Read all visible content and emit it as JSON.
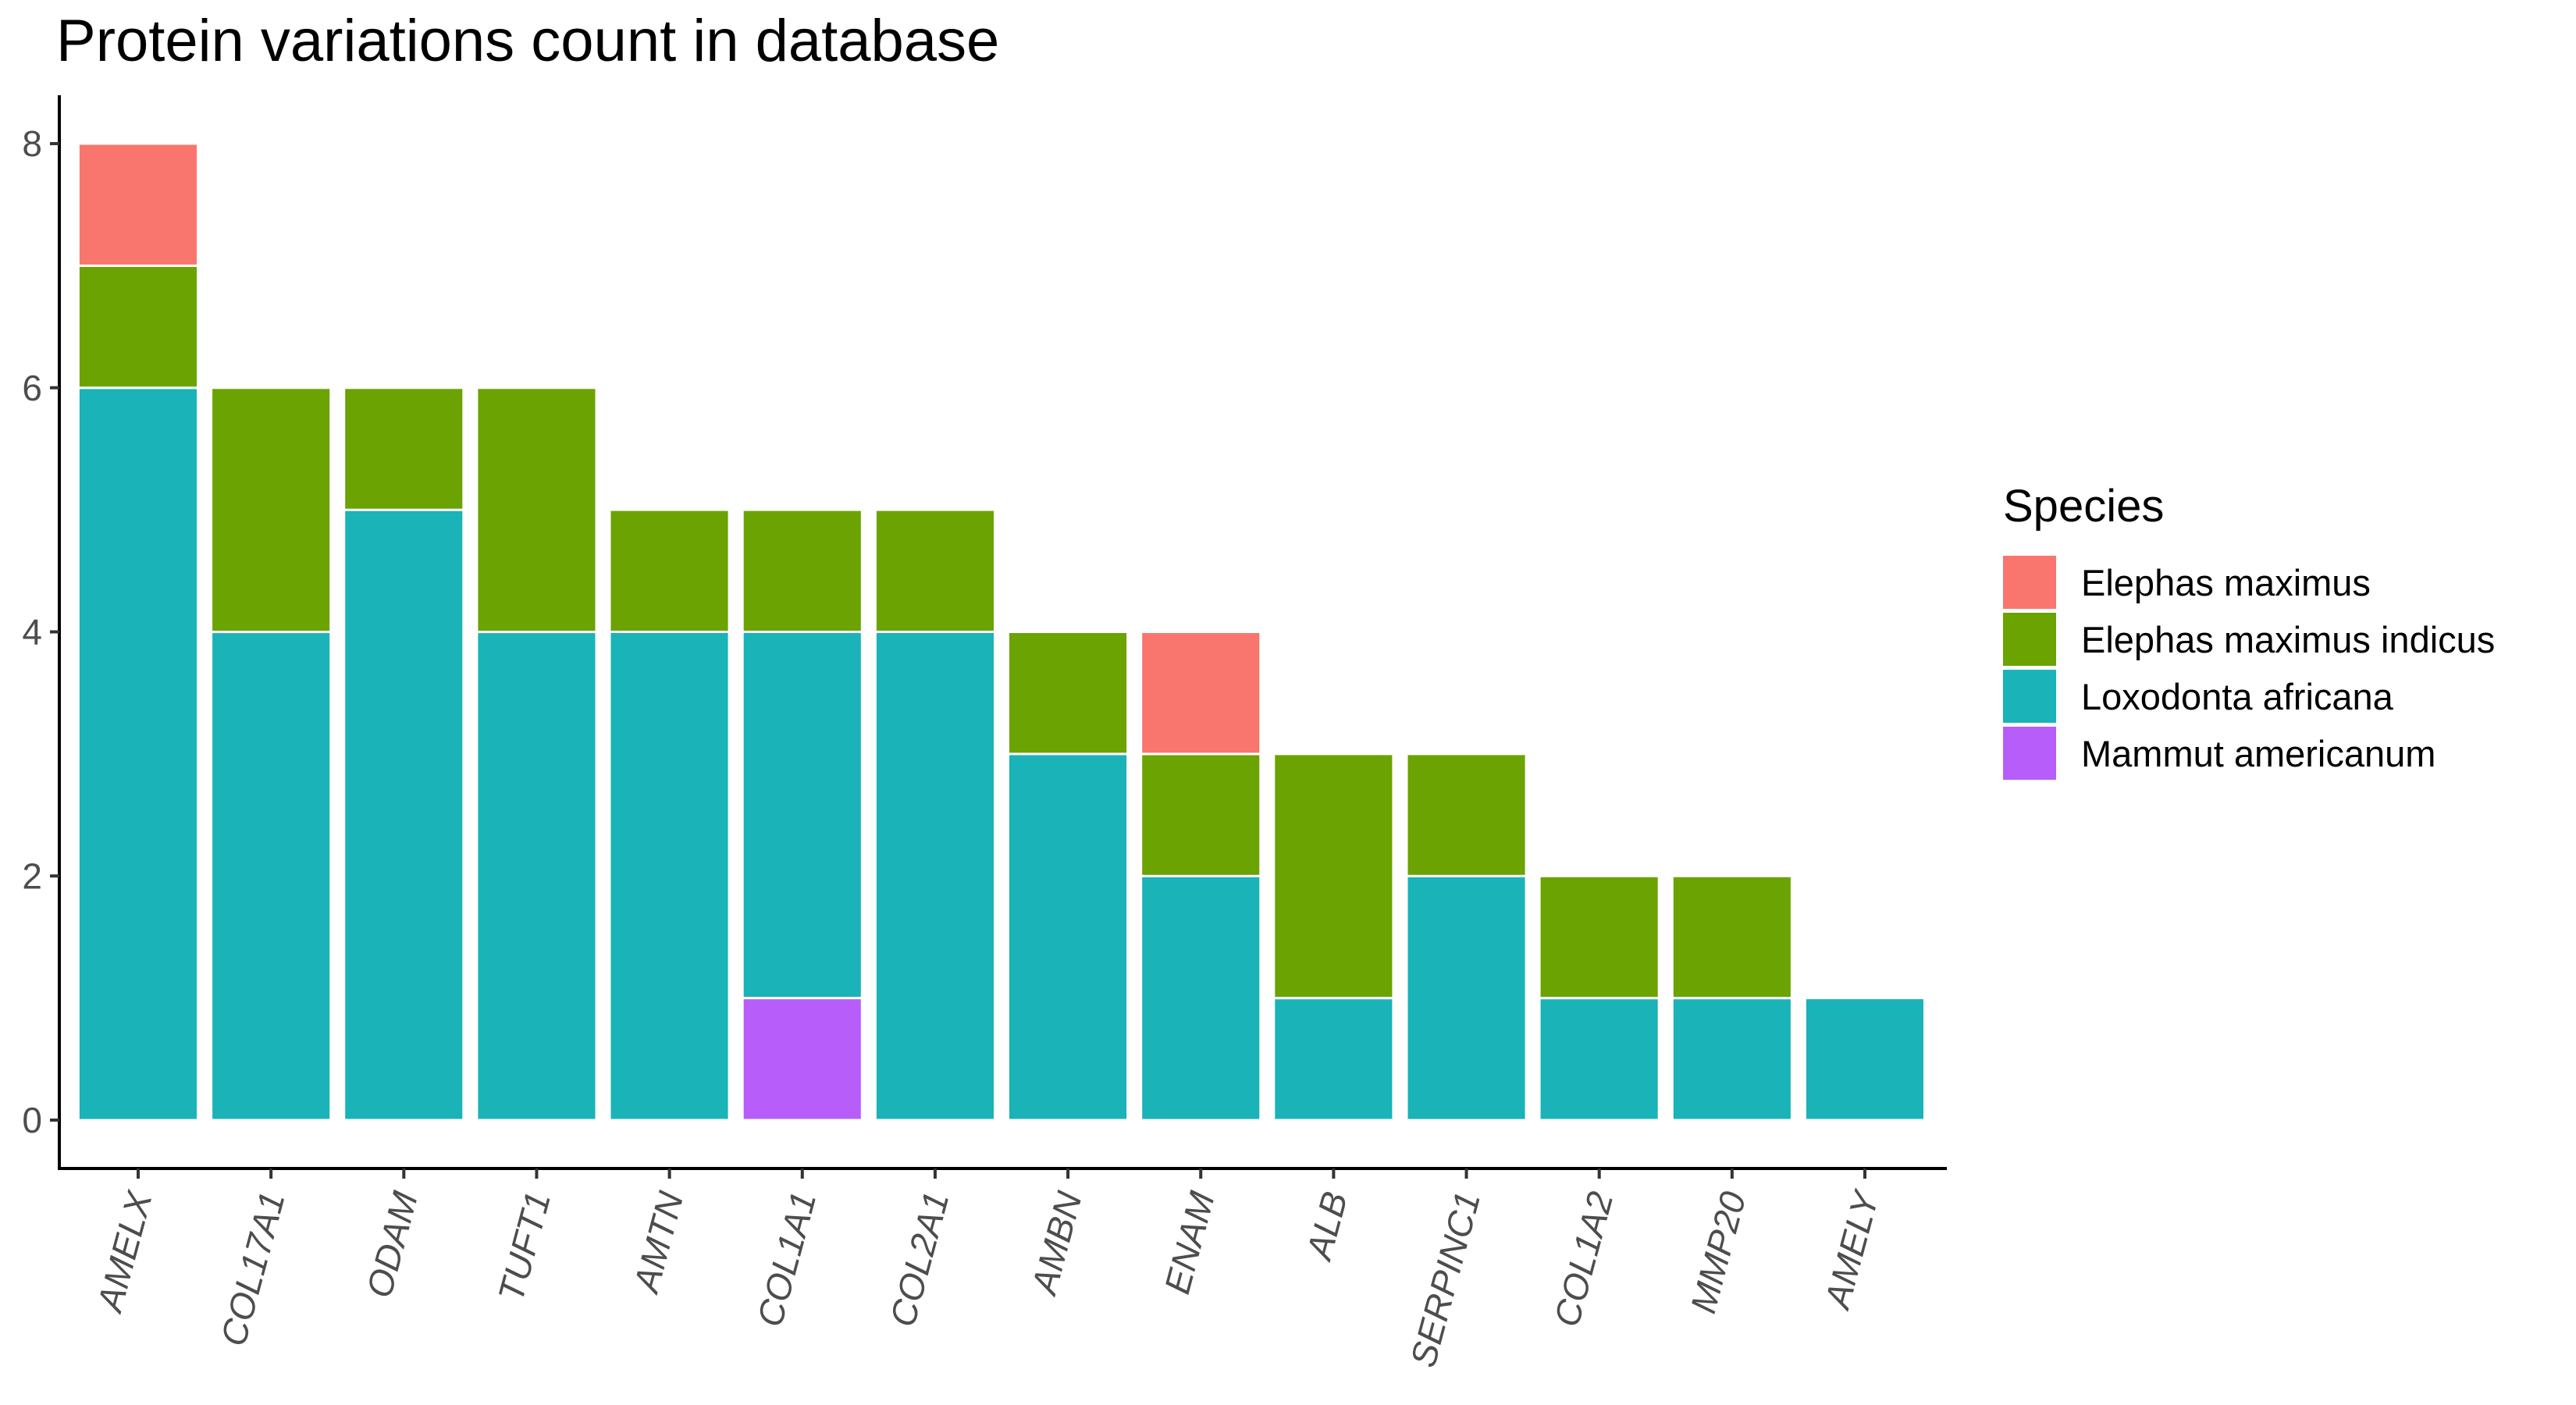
{
  "chart_data": {
    "type": "bar",
    "stacked": true,
    "title": "Protein variations count in database",
    "xlabel": "",
    "ylabel": "",
    "ylim": [
      0,
      8
    ],
    "yticks": [
      0,
      2,
      4,
      6,
      8
    ],
    "grid": false,
    "legend_position": "right",
    "legend_title": "Species",
    "categories": [
      "AMELX",
      "COL17A1",
      "ODAM",
      "TUFT1",
      "AMTN",
      "COL1A1",
      "COL2A1",
      "AMBN",
      "ENAM",
      "ALB",
      "SERPINC1",
      "COL1A2",
      "MMP20",
      "AMELY"
    ],
    "stack_order_bottom_to_top": [
      "Mammut americanum",
      "Loxodonta africana",
      "Elephas maximus indicus",
      "Elephas maximus"
    ],
    "series": [
      {
        "name": "Elephas maximus",
        "color": "#F8766D",
        "values": [
          1,
          0,
          0,
          0,
          0,
          0,
          0,
          0,
          1,
          0,
          0,
          0,
          0,
          0
        ]
      },
      {
        "name": "Elephas maximus indicus",
        "color": "#6BA302",
        "values": [
          1,
          2,
          1,
          2,
          1,
          1,
          1,
          1,
          1,
          2,
          1,
          1,
          1,
          0
        ]
      },
      {
        "name": "Loxodonta africana",
        "color": "#19B3B8",
        "values": [
          6,
          4,
          5,
          4,
          4,
          3,
          4,
          3,
          2,
          1,
          2,
          1,
          1,
          1
        ]
      },
      {
        "name": "Mammut americanum",
        "color": "#B65DFA",
        "values": [
          0,
          0,
          0,
          0,
          0,
          1,
          0,
          0,
          0,
          0,
          0,
          0,
          0,
          0
        ]
      }
    ]
  }
}
